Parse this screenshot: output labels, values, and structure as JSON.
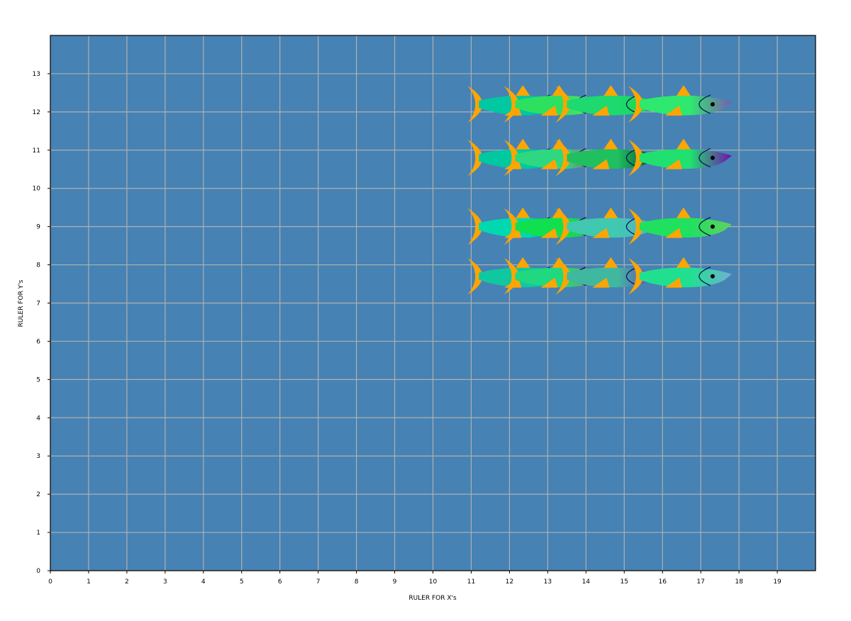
{
  "chart_data": {
    "type": "scatter",
    "title": "",
    "xlabel": "RULER FOR X's",
    "ylabel": "RULER FOR Y's",
    "xlim": [
      0,
      20
    ],
    "ylim": [
      0,
      14
    ],
    "xticks": [
      0,
      1,
      2,
      3,
      4,
      5,
      6,
      7,
      8,
      9,
      10,
      11,
      12,
      13,
      14,
      15,
      16,
      17,
      18,
      19
    ],
    "yticks": [
      0,
      1,
      2,
      3,
      4,
      5,
      6,
      7,
      8,
      9,
      10,
      11,
      12,
      13
    ],
    "grid": true,
    "background_color": "#4682b4",
    "grid_color": "#b0b0b0",
    "fin_color": "#ffa500",
    "marker": "fish-icon",
    "fish": [
      {
        "x": 12.35,
        "y": 12.2,
        "c1": "#00c8a0",
        "c2": "#1e5cc8"
      },
      {
        "x": 13.3,
        "y": 12.2,
        "c1": "#2ee060",
        "c2": "#90e070"
      },
      {
        "x": 14.65,
        "y": 12.2,
        "c1": "#1ed870",
        "c2": "#10e040"
      },
      {
        "x": 16.55,
        "y": 12.2,
        "c1": "#2ee870",
        "c2": "#7a5cb0"
      },
      {
        "x": 12.35,
        "y": 10.8,
        "c1": "#00c8a0",
        "c2": "#2e5cc8"
      },
      {
        "x": 13.3,
        "y": 10.8,
        "c1": "#2ed880",
        "c2": "#d02070"
      },
      {
        "x": 14.65,
        "y": 10.8,
        "c1": "#20c060",
        "c2": "#003828"
      },
      {
        "x": 16.55,
        "y": 10.8,
        "c1": "#20e070",
        "c2": "#7010b0"
      },
      {
        "x": 12.35,
        "y": 9.0,
        "c1": "#00d8b0",
        "c2": "#006040"
      },
      {
        "x": 13.3,
        "y": 9.0,
        "c1": "#10e050",
        "c2": "#30c040"
      },
      {
        "x": 14.65,
        "y": 9.0,
        "c1": "#40c8b0",
        "c2": "#60a8d0"
      },
      {
        "x": 16.55,
        "y": 9.0,
        "c1": "#20e060",
        "c2": "#60d060"
      },
      {
        "x": 12.35,
        "y": 7.7,
        "c1": "#10c8a0",
        "c2": "#2a8ab0"
      },
      {
        "x": 13.3,
        "y": 7.7,
        "c1": "#20d880",
        "c2": "#c07050"
      },
      {
        "x": 14.65,
        "y": 7.7,
        "c1": "#40b8a0",
        "c2": "#7030c0"
      },
      {
        "x": 16.55,
        "y": 7.7,
        "c1": "#20e090",
        "c2": "#70b0d0"
      }
    ]
  }
}
